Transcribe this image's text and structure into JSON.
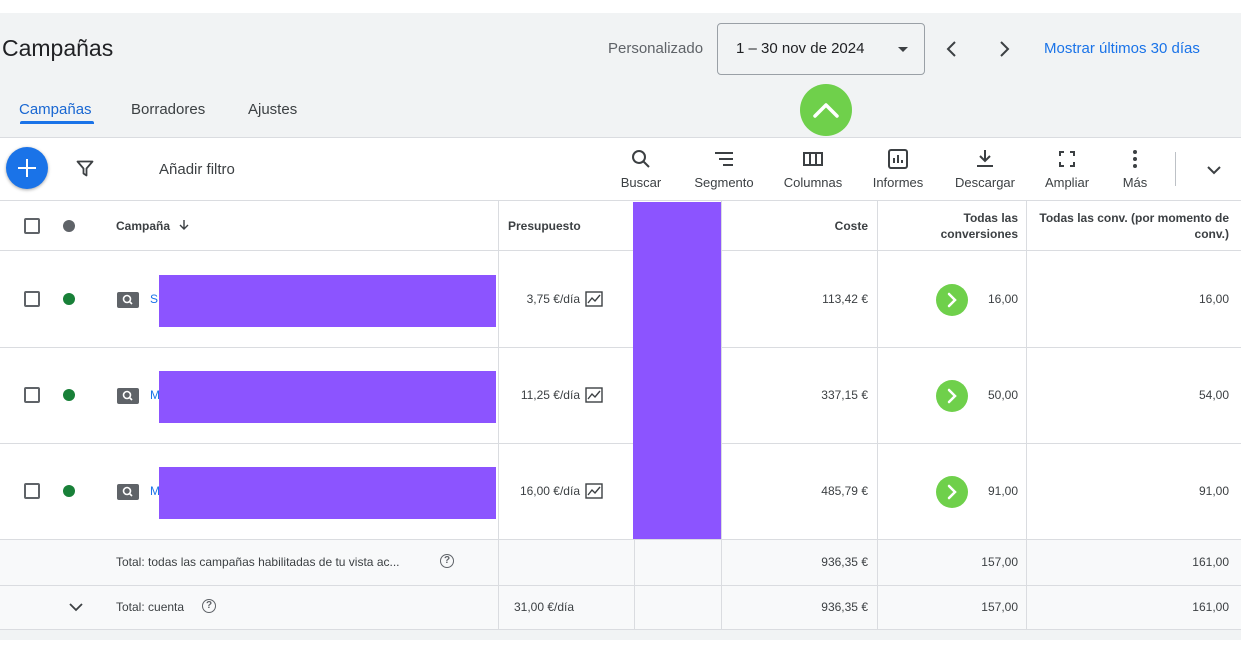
{
  "header": {
    "title": "Campañas",
    "range_label": "Personalizado",
    "date_range": "1 – 30 nov de 2024",
    "show_last_30": "Mostrar últimos 30 días"
  },
  "tabs": [
    {
      "label": "Campañas",
      "active": true
    },
    {
      "label": "Borradores",
      "active": false
    },
    {
      "label": "Ajustes",
      "active": false
    }
  ],
  "toolbar": {
    "add_filter": "Añadir filtro",
    "tools": [
      "Buscar",
      "Segmento",
      "Columnas",
      "Informes",
      "Descargar",
      "Ampliar",
      "Más"
    ]
  },
  "columns": {
    "campaign": "Campaña",
    "budget": "Presupuesto",
    "cost": "Coste",
    "all_conversions": "Todas las conversiones",
    "all_conv_by_time": "Todas las conv. (por momento de conv.)"
  },
  "rows": [
    {
      "name_initial": "S",
      "budget": "3,75 €/día",
      "cost": "113,42 €",
      "conversions": "16,00",
      "conv_by_time": "16,00",
      "status_color": "#188038"
    },
    {
      "name_initial": "M",
      "budget": "11,25 €/día",
      "cost": "337,15 €",
      "conversions": "50,00",
      "conv_by_time": "54,00",
      "status_color": "#188038"
    },
    {
      "name_initial": "M",
      "budget": "16,00 €/día",
      "cost": "485,79 €",
      "conversions": "91,00",
      "conv_by_time": "91,00",
      "status_color": "#188038"
    }
  ],
  "totals": {
    "enabled": {
      "label": "Total: todas las campañas habilitadas de tu vista ac...",
      "cost": "936,35 €",
      "conversions": "157,00",
      "conv_by_time": "161,00"
    },
    "account": {
      "label": "Total: cuenta",
      "budget": "31,00 €/día",
      "cost": "936,35 €",
      "conversions": "157,00",
      "conv_by_time": "161,00"
    }
  },
  "colors": {
    "accent": "#1a73e8",
    "highlight_green": "#6fd04b",
    "redaction": "#8c54ff",
    "enabled_status": "#188038"
  }
}
